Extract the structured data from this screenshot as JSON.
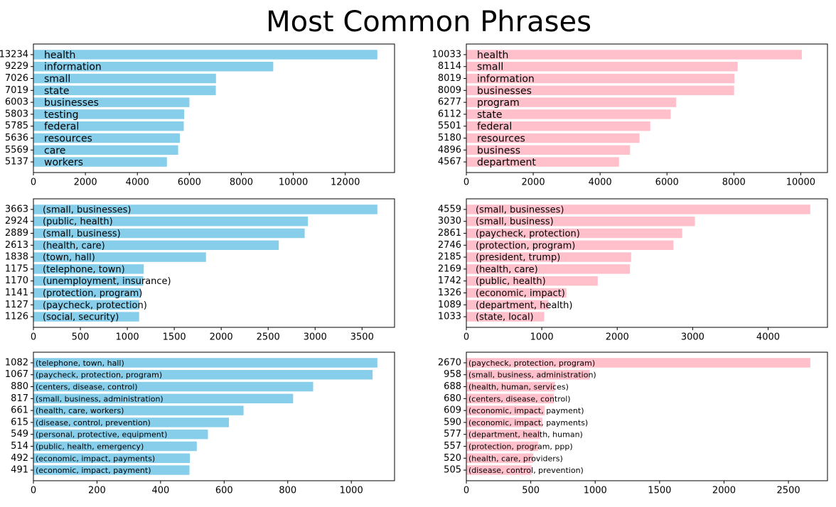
{
  "title": "Most Common Phrases",
  "chart_data": [
    {
      "type": "barh",
      "color": "#87ceeb",
      "xlim": [
        0,
        13896
      ],
      "xticks": [
        0,
        2000,
        4000,
        6000,
        8000,
        10000,
        12000
      ],
      "categories": [
        "health",
        "information",
        "small",
        "state",
        "businesses",
        "testing",
        "federal",
        "resources",
        "care",
        "workers"
      ],
      "values": [
        13234,
        9229,
        7026,
        7019,
        6003,
        5803,
        5785,
        5636,
        5569,
        5137
      ]
    },
    {
      "type": "barh",
      "color": "#ffc0cb",
      "xlim": [
        0,
        10800
      ],
      "xticks": [
        0,
        2000,
        4000,
        6000,
        8000,
        10000
      ],
      "categories": [
        "health",
        "small",
        "information",
        "businesses",
        "program",
        "state",
        "federal",
        "resources",
        "business",
        "department"
      ],
      "values": [
        10033,
        8114,
        8019,
        8009,
        6277,
        6112,
        5501,
        5180,
        4896,
        4567
      ]
    },
    {
      "type": "barh",
      "color": "#87ceeb",
      "xlim": [
        0,
        3846
      ],
      "xticks": [
        0,
        500,
        1000,
        1500,
        2000,
        2500,
        3000,
        3500
      ],
      "categories": [
        "(small, businesses)",
        "(public, health)",
        "(small, business)",
        "(health, care)",
        "(town, hall)",
        "(telephone, town)",
        "(unemployment, insurance)",
        "(protection, program)",
        "(paycheck, protection)",
        "(social, security)"
      ],
      "values": [
        3663,
        2924,
        2889,
        2613,
        1838,
        1175,
        1170,
        1141,
        1127,
        1126
      ]
    },
    {
      "type": "barh",
      "color": "#ffc0cb",
      "xlim": [
        0,
        4787
      ],
      "xticks": [
        0,
        1000,
        2000,
        3000,
        4000
      ],
      "categories": [
        "(small, businesses)",
        "(small, business)",
        "(paycheck, protection)",
        "(protection, program)",
        "(president, trump)",
        "(health, care)",
        "(public, health)",
        "(economic, impact)",
        "(department, health)",
        "(state, local)"
      ],
      "values": [
        4559,
        3030,
        2861,
        2746,
        2185,
        2169,
        1742,
        1326,
        1089,
        1033
      ]
    },
    {
      "type": "barh",
      "color": "#87ceeb",
      "xlim": [
        0,
        1136
      ],
      "xticks": [
        0,
        200,
        400,
        600,
        800,
        1000
      ],
      "categories": [
        "(telephone, town, hall)",
        "(paycheck, protection, program)",
        "(centers, disease, control)",
        "(small, business, administration)",
        "(health, care, workers)",
        "(disease, control, prevention)",
        "(personal, protective, equipment)",
        "(public, health, emergency)",
        "(economic, impact, payments)",
        "(economic, impact, payment)"
      ],
      "values": [
        1082,
        1067,
        880,
        817,
        661,
        615,
        549,
        514,
        492,
        491
      ]
    },
    {
      "type": "barh",
      "color": "#ffc0cb",
      "xlim": [
        0,
        2803
      ],
      "xticks": [
        0,
        500,
        1000,
        1500,
        2000,
        2500
      ],
      "categories": [
        "(paycheck, protection, program)",
        "(small, business, administration)",
        "(health, human, services)",
        "(centers, disease, control)",
        "(economic, impact, payment)",
        "(economic, impact, payments)",
        "(department, health, human)",
        "(protection, program, ppp)",
        "(health, care, providers)",
        "(disease, control, prevention)"
      ],
      "values": [
        2670,
        958,
        688,
        680,
        609,
        590,
        577,
        557,
        520,
        505
      ]
    }
  ]
}
